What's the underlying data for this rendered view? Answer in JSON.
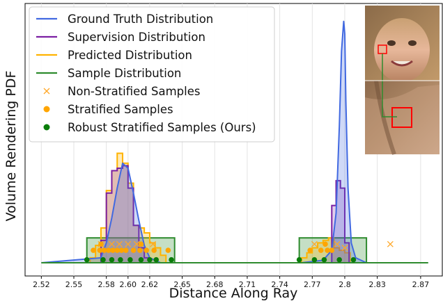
{
  "chart_data": {
    "type": "line",
    "xlabel": "Distance Along Ray",
    "ylabel": "Volume Rendering PDF",
    "xlim": [
      2.505,
      2.89
    ],
    "ylim": [
      0,
      1.0
    ],
    "x_ticks": [
      2.52,
      2.55,
      2.58,
      2.6,
      2.62,
      2.65,
      2.68,
      2.71,
      2.74,
      2.77,
      2.8,
      2.83,
      2.87
    ],
    "x_tick_labels": [
      "2.52",
      "2.55",
      "2.58",
      "2.60",
      "2.62",
      "2.65",
      "2.68",
      "2.71",
      "2.74",
      "2.77",
      "2.8",
      "2.83",
      "2.87"
    ],
    "grid": "vertical",
    "legend_position": "top-left",
    "legend": [
      {
        "label": "Ground Truth Distribution",
        "kind": "line",
        "color": "#4169e1"
      },
      {
        "label": "Supervision Distribution",
        "kind": "line",
        "color": "#7b1fa2"
      },
      {
        "label": "Predicted Distribution",
        "kind": "line",
        "color": "#ffb300"
      },
      {
        "label": "Sample Distribution",
        "kind": "line",
        "color": "#2e8b2e"
      },
      {
        "label": "Non-Stratified Samples",
        "kind": "x",
        "color": "#ffa726"
      },
      {
        "label": "Stratified Samples",
        "kind": "dot",
        "color": "#ffa500"
      },
      {
        "label": "Robust Stratified Samples (Ours)",
        "kind": "dot",
        "color": "#0a7d0a"
      }
    ],
    "ground_truth": {
      "x": [
        2.52,
        2.575,
        2.58,
        2.585,
        2.59,
        2.595,
        2.6,
        2.605,
        2.61,
        2.615,
        2.62,
        2.63,
        2.76,
        2.78,
        2.788,
        2.792,
        2.795,
        2.797,
        2.799,
        2.8,
        2.801,
        2.803,
        2.806,
        2.81,
        2.82,
        2.87
      ],
      "y": [
        0.0,
        0.02,
        0.08,
        0.18,
        0.3,
        0.4,
        0.38,
        0.28,
        0.17,
        0.07,
        0.02,
        0.0,
        0.0,
        0.01,
        0.05,
        0.2,
        0.55,
        0.85,
        0.97,
        0.92,
        0.65,
        0.3,
        0.08,
        0.02,
        0.0,
        0.0
      ]
    },
    "supervision_step": {
      "edges": [
        2.575,
        2.58,
        2.585,
        2.59,
        2.595,
        2.6,
        2.605,
        2.61,
        2.615,
        2.62,
        2.788,
        2.792,
        2.796,
        2.8,
        2.804,
        2.808
      ],
      "values": [
        0.09,
        0.28,
        0.37,
        0.38,
        0.39,
        0.3,
        0.15,
        0.06,
        0.02,
        0.0,
        0.23,
        0.33,
        0.3,
        0.08,
        0.0
      ]
    },
    "predicted_step": {
      "edges": [
        2.565,
        2.57,
        2.575,
        2.58,
        2.585,
        2.59,
        2.595,
        2.6,
        2.605,
        2.61,
        2.615,
        2.62,
        2.625,
        2.63,
        2.635,
        2.76,
        2.765,
        2.77,
        2.775,
        2.78,
        2.785,
        2.79,
        2.795,
        2.8,
        2.805
      ],
      "values": [
        0.02,
        0.07,
        0.14,
        0.29,
        0.37,
        0.44,
        0.4,
        0.32,
        0.15,
        0.14,
        0.12,
        0.08,
        0.06,
        0.03,
        0.0,
        0.02,
        0.04,
        0.06,
        0.08,
        0.09,
        0.1,
        0.06,
        0.05,
        0.04,
        0.0
      ]
    },
    "sample_boxes": [
      {
        "x_start": 2.562,
        "x_end": 2.643,
        "height": 0.1
      },
      {
        "x_start": 2.758,
        "x_end": 2.82,
        "height": 0.1
      }
    ],
    "non_stratified_samples": [
      {
        "x": 2.575,
        "y": 0.075
      },
      {
        "x": 2.585,
        "y": 0.075
      },
      {
        "x": 2.592,
        "y": 0.075
      },
      {
        "x": 2.6,
        "y": 0.075
      },
      {
        "x": 2.608,
        "y": 0.075
      },
      {
        "x": 2.623,
        "y": 0.075
      },
      {
        "x": 2.772,
        "y": 0.075
      },
      {
        "x": 2.793,
        "y": 0.075
      },
      {
        "x": 2.8,
        "y": 0.06
      },
      {
        "x": 2.842,
        "y": 0.075
      }
    ],
    "stratified_samples": [
      {
        "x": 2.568,
        "y": 0.05
      },
      {
        "x": 2.574,
        "y": 0.05
      },
      {
        "x": 2.578,
        "y": 0.05
      },
      {
        "x": 2.582,
        "y": 0.05
      },
      {
        "x": 2.586,
        "y": 0.05
      },
      {
        "x": 2.59,
        "y": 0.05
      },
      {
        "x": 2.594,
        "y": 0.05
      },
      {
        "x": 2.598,
        "y": 0.05
      },
      {
        "x": 2.605,
        "y": 0.05
      },
      {
        "x": 2.611,
        "y": 0.05
      },
      {
        "x": 2.617,
        "y": 0.05
      },
      {
        "x": 2.624,
        "y": 0.05
      },
      {
        "x": 2.637,
        "y": 0.05
      },
      {
        "x": 2.575,
        "y": 0.075
      },
      {
        "x": 2.612,
        "y": 0.075
      },
      {
        "x": 2.768,
        "y": 0.05
      },
      {
        "x": 2.778,
        "y": 0.05
      },
      {
        "x": 2.784,
        "y": 0.05
      },
      {
        "x": 2.788,
        "y": 0.05
      },
      {
        "x": 2.782,
        "y": 0.075
      }
    ],
    "robust_stratified_samples": [
      {
        "x": 2.562,
        "y": 0.012
      },
      {
        "x": 2.577,
        "y": 0.012
      },
      {
        "x": 2.585,
        "y": 0.012
      },
      {
        "x": 2.593,
        "y": 0.012
      },
      {
        "x": 2.602,
        "y": 0.012
      },
      {
        "x": 2.612,
        "y": 0.012
      },
      {
        "x": 2.62,
        "y": 0.012
      },
      {
        "x": 2.626,
        "y": 0.012
      },
      {
        "x": 2.64,
        "y": 0.012
      },
      {
        "x": 2.758,
        "y": 0.012
      },
      {
        "x": 2.772,
        "y": 0.012
      },
      {
        "x": 2.781,
        "y": 0.012
      },
      {
        "x": 2.795,
        "y": 0.012
      },
      {
        "x": 2.808,
        "y": 0.012
      }
    ],
    "inset_image": {
      "description": "child face",
      "highlight_box_color": "#ff0000",
      "connector_color": "#2e8b2e"
    }
  }
}
